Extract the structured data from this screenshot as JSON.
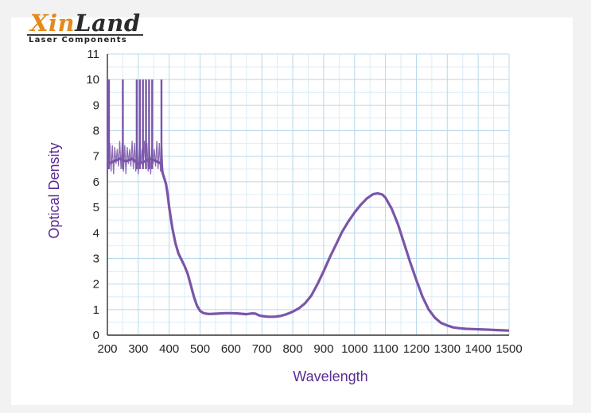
{
  "logo": {
    "word_part1": "Xin",
    "word_part2": "Land",
    "tagline": "Laser Components",
    "colors": {
      "accent": "#e58a1c",
      "dark": "#2b2b2b"
    }
  },
  "chart_data": {
    "type": "line",
    "title": "",
    "xlabel": "Wavelength",
    "ylabel": "Optical Density",
    "xlim": [
      200,
      1500
    ],
    "ylim": [
      0,
      11
    ],
    "x_ticks": [
      200,
      300,
      400,
      500,
      600,
      700,
      800,
      900,
      1000,
      1100,
      1200,
      1300,
      1400,
      1500
    ],
    "y_ticks": [
      0,
      1,
      2,
      3,
      4,
      5,
      6,
      7,
      8,
      9,
      10,
      11
    ],
    "grid": true,
    "colors": {
      "line": "#7a55a8",
      "grid": "#b8d8ec",
      "label": "#5b2c91"
    },
    "series": [
      {
        "x": [
          200,
          220,
          240,
          260,
          280,
          300,
          320,
          340,
          360,
          375,
          378,
          380,
          385,
          390,
          395,
          400,
          410,
          420,
          430,
          440,
          450,
          460,
          470,
          480,
          490,
          500,
          510,
          520,
          530,
          550,
          580,
          600,
          620,
          650,
          670,
          680,
          690,
          700,
          720,
          740,
          760,
          780,
          800,
          820,
          840,
          860,
          880,
          900,
          920,
          940,
          960,
          980,
          1000,
          1020,
          1040,
          1060,
          1075,
          1090,
          1100,
          1120,
          1140,
          1160,
          1180,
          1200,
          1220,
          1240,
          1260,
          1280,
          1300,
          1320,
          1340,
          1360,
          1380,
          1400,
          1420,
          1440,
          1460,
          1480,
          1500
        ],
        "y": [
          6.7,
          6.8,
          6.9,
          6.8,
          6.9,
          6.7,
          6.8,
          6.9,
          6.8,
          6.7,
          6.4,
          6.3,
          6.1,
          5.9,
          5.5,
          5.0,
          4.2,
          3.6,
          3.2,
          2.95,
          2.7,
          2.4,
          1.95,
          1.5,
          1.15,
          0.95,
          0.87,
          0.84,
          0.83,
          0.84,
          0.86,
          0.86,
          0.85,
          0.82,
          0.85,
          0.84,
          0.78,
          0.75,
          0.72,
          0.72,
          0.75,
          0.82,
          0.92,
          1.05,
          1.25,
          1.55,
          2.0,
          2.5,
          3.05,
          3.55,
          4.05,
          4.45,
          4.8,
          5.1,
          5.35,
          5.52,
          5.55,
          5.5,
          5.38,
          4.95,
          4.35,
          3.6,
          2.85,
          2.15,
          1.5,
          1.0,
          0.68,
          0.48,
          0.38,
          0.3,
          0.27,
          0.25,
          0.24,
          0.23,
          0.22,
          0.21,
          0.2,
          0.19,
          0.18
        ]
      }
    ],
    "noise_region": {
      "x_start": 200,
      "x_end": 380,
      "spike_x": [
        205,
        250,
        295,
        305,
        315,
        325,
        335,
        345,
        375
      ],
      "spike_top": 10,
      "band_upper": 7.6,
      "band_lower": 6.3
    }
  }
}
